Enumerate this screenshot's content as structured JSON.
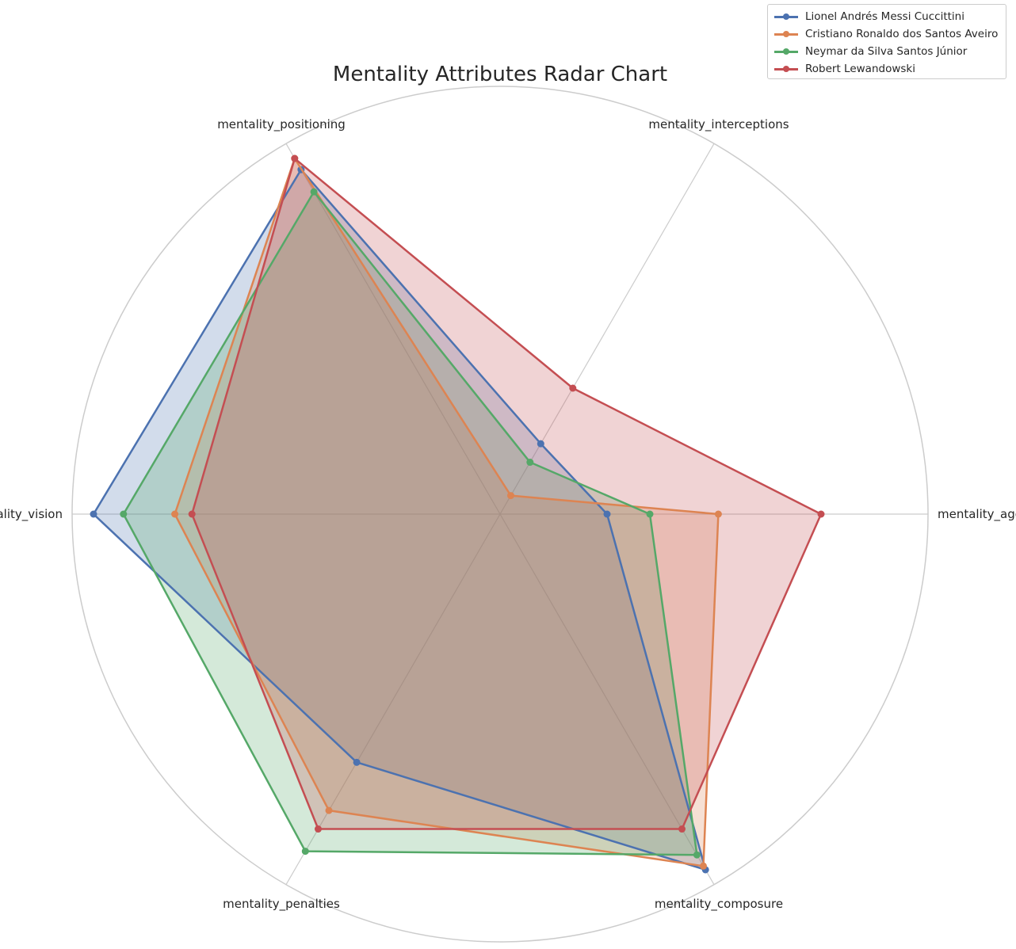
{
  "chart_data": {
    "type": "radar",
    "title": "Mentality Attributes Radar Chart",
    "axes": [
      "mentality_aggression",
      "mentality_interceptions",
      "mentality_positioning",
      "mentality_vision",
      "mentality_penalties",
      "mentality_composure"
    ],
    "rmax": 100,
    "grid": true,
    "legend_position": "top-right",
    "series": [
      {
        "name": "Lionel Andrés Messi Cuccittini",
        "color": "#4c72b0",
        "values": [
          25,
          19,
          93,
          95,
          67,
          96
        ]
      },
      {
        "name": "Cristiano Ronaldo dos Santos Aveiro",
        "color": "#dd8452",
        "values": [
          51,
          5,
          96,
          76,
          80,
          95
        ]
      },
      {
        "name": "Neymar da Silva Santos Júnior",
        "color": "#55a868",
        "values": [
          35,
          14,
          87,
          88,
          91,
          92
        ]
      },
      {
        "name": "Robert Lewandowski",
        "color": "#c44e52",
        "values": [
          75,
          34,
          96,
          72,
          85,
          85
        ]
      }
    ]
  }
}
